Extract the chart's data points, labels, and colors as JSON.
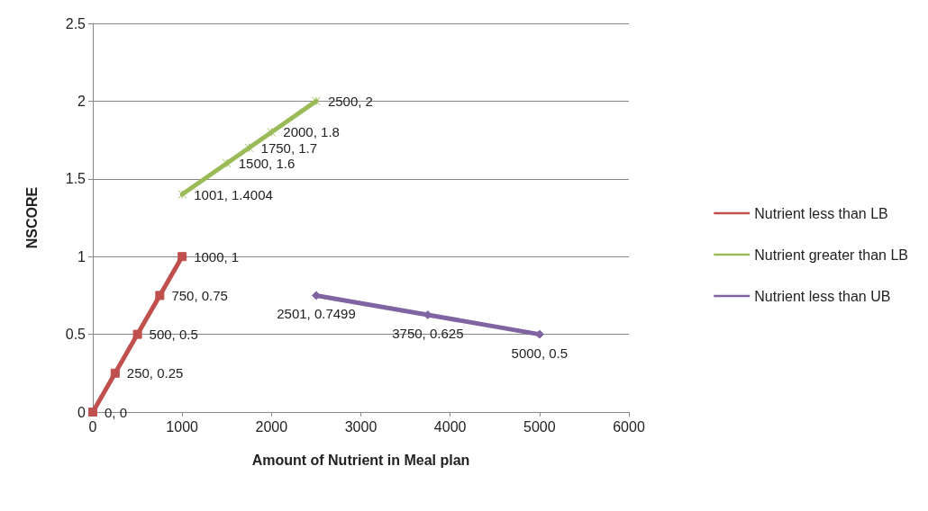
{
  "chart_data": {
    "type": "line",
    "xlabel": "Amount of Nutrient in Meal plan",
    "ylabel": "NSCORE",
    "xlim": [
      0,
      6000
    ],
    "xticks": [
      0,
      1000,
      2000,
      3000,
      4000,
      5000,
      6000
    ],
    "ylim": [
      0,
      2.5
    ],
    "yticks": [
      0,
      0.5,
      1,
      1.5,
      2,
      2.5
    ],
    "grid": "y",
    "legend": "right",
    "series": [
      {
        "name": "Nutrient less than LB",
        "color": "#c0504d",
        "marker": "square",
        "x": [
          0,
          250,
          500,
          750,
          1000
        ],
        "values": [
          0,
          0.25,
          0.5,
          0.75,
          1
        ],
        "value_labels": [
          "0, 0",
          "250, 0.25",
          "500, 0.5",
          "750, 0.75",
          "1000, 1"
        ]
      },
      {
        "name": "Nutrient greater than LB",
        "color": "#9bbb59",
        "marker": "cross",
        "x": [
          1001,
          1500,
          1750,
          2000,
          2500
        ],
        "values": [
          1.4004,
          1.6,
          1.7,
          1.8,
          2
        ],
        "value_labels": [
          "1001, 1.4004",
          "1500, 1.6",
          "1750, 1.7",
          "2000, 1.8",
          "2500, 2"
        ]
      },
      {
        "name": "Nutrient less than UB",
        "color": "#8064a2",
        "marker": "diamond",
        "x": [
          2501,
          3750,
          5000
        ],
        "values": [
          0.7499,
          0.625,
          0.5
        ],
        "value_labels": [
          "2501, 0.7499",
          "3750, 0.625",
          "5000, 0.5"
        ]
      }
    ]
  }
}
